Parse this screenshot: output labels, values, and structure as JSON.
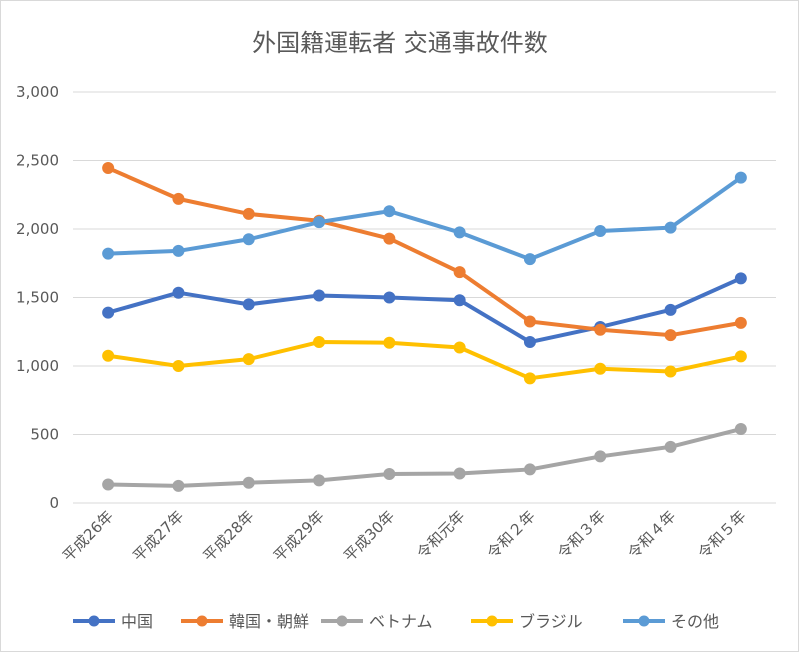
{
  "chart_data": {
    "type": "line",
    "title": "外国籍運転者 交通事故件数",
    "xlabel": "",
    "ylabel": "",
    "categories": [
      "平成26年",
      "平成27年",
      "平成28年",
      "平成29年",
      "平成30年",
      "令和元年",
      "令和２年",
      "令和３年",
      "令和４年",
      "令和５年"
    ],
    "ylim": [
      0,
      3000
    ],
    "yticks": [
      0,
      500,
      1000,
      1500,
      2000,
      2500,
      3000
    ],
    "ytick_labels": [
      "0",
      "500",
      "1,000",
      "1,500",
      "2,000",
      "2,500",
      "3,000"
    ],
    "grid": true,
    "legend_position": "bottom",
    "series": [
      {
        "name": "中国",
        "color": "#4472C4",
        "values": [
          1390,
          1535,
          1450,
          1515,
          1500,
          1480,
          1175,
          1285,
          1410,
          1640
        ]
      },
      {
        "name": "韓国・朝鮮",
        "color": "#ED7D31",
        "values": [
          2445,
          2220,
          2110,
          2060,
          1930,
          1685,
          1325,
          1265,
          1225,
          1315
        ]
      },
      {
        "name": "ベトナム",
        "color": "#A5A5A5",
        "values": [
          135,
          125,
          148,
          165,
          212,
          215,
          245,
          340,
          410,
          540
        ]
      },
      {
        "name": "ブラジル",
        "color": "#FFC000",
        "values": [
          1075,
          1000,
          1050,
          1175,
          1170,
          1135,
          910,
          980,
          960,
          1070
        ]
      },
      {
        "name": "その他",
        "color": "#5B9BD5",
        "values": [
          1820,
          1840,
          1925,
          2050,
          2130,
          1975,
          1780,
          1985,
          2010,
          2375
        ]
      }
    ]
  }
}
